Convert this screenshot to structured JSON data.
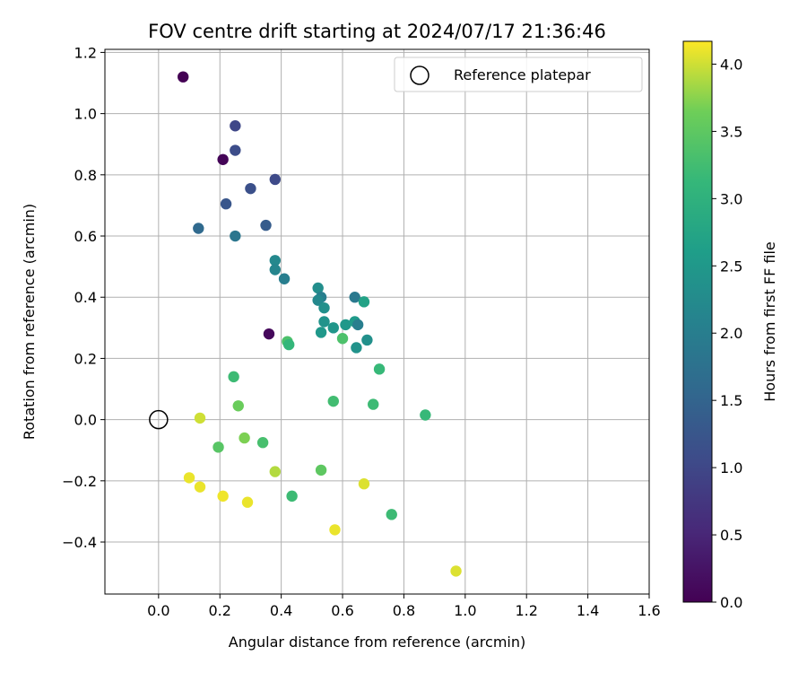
{
  "chart_data": {
    "type": "scatter",
    "title": "FOV centre drift starting at 2024/07/17 21:36:46",
    "xlabel": "Angular distance from reference (arcmin)",
    "ylabel": "Rotation from reference (arcmin)",
    "xlim": [
      -0.175,
      1.6
    ],
    "ylim": [
      -0.57,
      1.21
    ],
    "xticks": [
      "0.0",
      "0.2",
      "0.4",
      "0.6",
      "0.8",
      "1.0",
      "1.2",
      "1.4",
      "1.6"
    ],
    "yticks": [
      "−0.4",
      "−0.2",
      "0.0",
      "0.2",
      "0.4",
      "0.6",
      "0.8",
      "1.0",
      "1.2"
    ],
    "grid": true,
    "legend": {
      "placement": "top-right",
      "entries": [
        "Reference platepar"
      ]
    },
    "reference_point": {
      "x": 0.0,
      "y": 0.0,
      "label": "Reference platepar"
    },
    "colorbar": {
      "label": "Hours from first FF file",
      "range": [
        0.0,
        4.17
      ],
      "ticks": [
        "0.0",
        "0.5",
        "1.0",
        "1.5",
        "2.0",
        "2.5",
        "3.0",
        "3.5",
        "4.0"
      ],
      "colormap": "viridis"
    },
    "series": [
      {
        "points": [
          {
            "x": 0.08,
            "y": 1.12,
            "c": 0.0
          },
          {
            "x": 0.21,
            "y": 0.85,
            "c": 0.05
          },
          {
            "x": 0.36,
            "y": 0.28,
            "c": 0.1
          },
          {
            "x": 0.25,
            "y": 0.96,
            "c": 1.0
          },
          {
            "x": 0.25,
            "y": 0.88,
            "c": 1.1
          },
          {
            "x": 0.38,
            "y": 0.785,
            "c": 1.05
          },
          {
            "x": 0.3,
            "y": 0.755,
            "c": 1.15
          },
          {
            "x": 0.22,
            "y": 0.705,
            "c": 1.25
          },
          {
            "x": 0.35,
            "y": 0.635,
            "c": 1.35
          },
          {
            "x": 0.13,
            "y": 0.625,
            "c": 1.6
          },
          {
            "x": 0.25,
            "y": 0.6,
            "c": 1.85
          },
          {
            "x": 0.38,
            "y": 0.52,
            "c": 2.2
          },
          {
            "x": 0.38,
            "y": 0.49,
            "c": 2.15
          },
          {
            "x": 0.41,
            "y": 0.46,
            "c": 2.0
          },
          {
            "x": 0.52,
            "y": 0.43,
            "c": 2.3
          },
          {
            "x": 0.53,
            "y": 0.4,
            "c": 2.0
          },
          {
            "x": 0.52,
            "y": 0.39,
            "c": 2.2
          },
          {
            "x": 0.54,
            "y": 0.365,
            "c": 2.35
          },
          {
            "x": 0.64,
            "y": 0.4,
            "c": 1.9
          },
          {
            "x": 0.67,
            "y": 0.385,
            "c": 2.7
          },
          {
            "x": 0.54,
            "y": 0.32,
            "c": 2.4
          },
          {
            "x": 0.57,
            "y": 0.3,
            "c": 2.45
          },
          {
            "x": 0.53,
            "y": 0.285,
            "c": 2.5
          },
          {
            "x": 0.61,
            "y": 0.31,
            "c": 2.5
          },
          {
            "x": 0.64,
            "y": 0.32,
            "c": 2.55
          },
          {
            "x": 0.65,
            "y": 0.31,
            "c": 2.0
          },
          {
            "x": 0.68,
            "y": 0.26,
            "c": 2.35
          },
          {
            "x": 0.645,
            "y": 0.235,
            "c": 2.4
          },
          {
            "x": 0.6,
            "y": 0.265,
            "c": 3.35
          },
          {
            "x": 0.42,
            "y": 0.255,
            "c": 3.35
          },
          {
            "x": 0.425,
            "y": 0.245,
            "c": 3.1
          },
          {
            "x": 0.72,
            "y": 0.165,
            "c": 3.15
          },
          {
            "x": 0.245,
            "y": 0.14,
            "c": 3.2
          },
          {
            "x": 0.57,
            "y": 0.06,
            "c": 3.25
          },
          {
            "x": 0.7,
            "y": 0.05,
            "c": 3.2
          },
          {
            "x": 0.87,
            "y": 0.015,
            "c": 3.15
          },
          {
            "x": 0.26,
            "y": 0.045,
            "c": 3.6
          },
          {
            "x": 0.135,
            "y": 0.005,
            "c": 4.0
          },
          {
            "x": 0.195,
            "y": -0.09,
            "c": 3.45
          },
          {
            "x": 0.28,
            "y": -0.06,
            "c": 3.7
          },
          {
            "x": 0.34,
            "y": -0.075,
            "c": 3.3
          },
          {
            "x": 0.38,
            "y": -0.17,
            "c": 3.9
          },
          {
            "x": 0.53,
            "y": -0.165,
            "c": 3.5
          },
          {
            "x": 0.67,
            "y": -0.21,
            "c": 4.05
          },
          {
            "x": 0.1,
            "y": -0.19,
            "c": 4.1
          },
          {
            "x": 0.135,
            "y": -0.22,
            "c": 4.1
          },
          {
            "x": 0.21,
            "y": -0.25,
            "c": 4.12
          },
          {
            "x": 0.29,
            "y": -0.27,
            "c": 4.1
          },
          {
            "x": 0.435,
            "y": -0.25,
            "c": 3.2
          },
          {
            "x": 0.76,
            "y": -0.31,
            "c": 3.2
          },
          {
            "x": 0.575,
            "y": -0.36,
            "c": 4.1
          },
          {
            "x": 0.97,
            "y": -0.495,
            "c": 4.05
          }
        ]
      }
    ]
  }
}
